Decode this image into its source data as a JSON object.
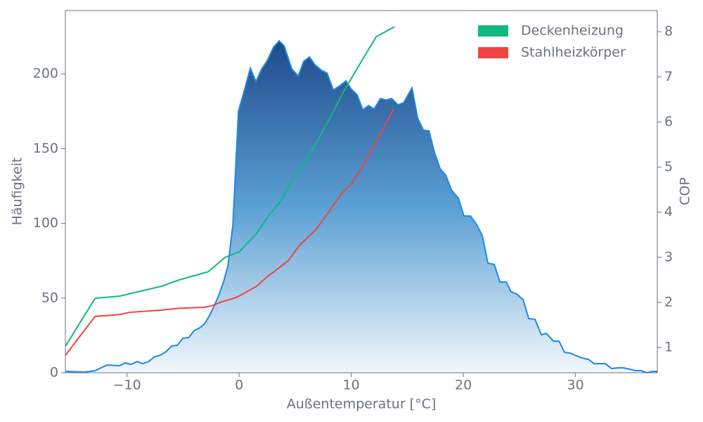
{
  "chart_data": {
    "type": "line",
    "xlabel": "Außentemperatur [°C]",
    "ylabel": "Häufigkeit",
    "y2label": "COP",
    "xlim": [
      -15.5,
      37.3
    ],
    "ylim": [
      0,
      242.4
    ],
    "y2lim": [
      0.44,
      8.47
    ],
    "xticks": [
      {
        "value": -10,
        "label": "−10"
      },
      0,
      10,
      20,
      30
    ],
    "yticks": [
      0,
      50,
      100,
      150,
      200
    ],
    "y2ticks": [
      1,
      2,
      3,
      4,
      5,
      6,
      7,
      8
    ],
    "legend": "upper right",
    "series": [
      {
        "type": "area",
        "color": "#1e88e5",
        "x": [
          -15.49,
          -13.79,
          -12.85,
          -11.79,
          -10.66,
          -10.15,
          -9.66,
          -9.09,
          -8.59,
          -8.09,
          -7.52,
          -7.02,
          -6.52,
          -6.02,
          -5.52,
          -5.02,
          -4.51,
          -4.01,
          -3.51,
          -3.07,
          -2.7,
          -2.26,
          -1.82,
          -1.38,
          -1.0,
          -0.56,
          -0.06,
          0.44,
          1.0,
          1.5,
          2.01,
          2.51,
          3.07,
          3.57,
          4.01,
          4.7,
          5.27,
          5.77,
          6.27,
          6.77,
          7.34,
          7.84,
          8.4,
          8.97,
          9.53,
          9.97,
          10.53,
          11.03,
          11.54,
          12.04,
          12.6,
          13.1,
          13.61,
          14.17,
          14.67,
          15.42,
          15.92,
          16.43,
          16.93,
          17.43,
          17.93,
          18.43,
          18.93,
          19.56,
          20.06,
          20.63,
          21.13,
          21.69,
          22.19,
          22.76,
          23.26,
          23.82,
          24.26,
          24.76,
          25.33,
          25.83,
          26.39,
          26.96,
          27.4,
          28.03,
          28.53,
          29.03,
          29.53,
          30.09,
          30.6,
          31.16,
          31.66,
          32.16,
          32.66,
          33.23,
          33.79,
          34.29,
          34.8,
          35.36,
          35.86,
          36.36,
          36.87,
          37.3
        ],
        "values": [
          0.9,
          0.5,
          1.4,
          5.2,
          4.7,
          6.6,
          5.6,
          7.5,
          6.1,
          7.5,
          10.8,
          11.8,
          14.1,
          17.9,
          18.4,
          23.1,
          23.5,
          28.2,
          30.1,
          32.9,
          37.6,
          44.2,
          51.8,
          61.2,
          71.5,
          98.8,
          175.1,
          188.2,
          203.8,
          194.8,
          203.3,
          208.9,
          217.9,
          222.1,
          218.8,
          203.3,
          198.6,
          208.5,
          211.3,
          206.1,
          202.4,
          200.5,
          189.2,
          192.0,
          195.3,
          190.1,
          185.9,
          176.0,
          178.8,
          176.5,
          183.5,
          182.6,
          183.5,
          179.3,
          180.7,
          190.6,
          170.4,
          162.4,
          161.9,
          147.3,
          136.5,
          132.2,
          122.4,
          116.7,
          104.9,
          104.9,
          99.8,
          91.8,
          73.4,
          72.5,
          60.7,
          60.7,
          54.1,
          52.7,
          48.9,
          36.2,
          35.8,
          25.4,
          26.4,
          21.2,
          21.2,
          13.6,
          13.2,
          11.3,
          9.9,
          8.9,
          6.1,
          6.1,
          6.1,
          2.8,
          3.3,
          3.3,
          2.4,
          1.4,
          1.4,
          0,
          0.9,
          0.9
        ]
      },
      {
        "type": "line",
        "name": "Deckenheizung",
        "color": "#10b981",
        "axis": "y2",
        "x": [
          -15.49,
          -12.85,
          -10.66,
          -6.9,
          -5.33,
          -2.76,
          -1.25,
          0,
          1.57,
          2.7,
          3.7,
          5.33,
          5.77,
          6.83,
          8.15,
          9.4,
          11.16,
          12.23,
          13.86
        ],
        "values": [
          1.03,
          2.09,
          2.14,
          2.36,
          2.5,
          2.68,
          3.0,
          3.12,
          3.53,
          3.95,
          4.24,
          4.96,
          5.07,
          5.51,
          6.11,
          6.71,
          7.45,
          7.89,
          8.11
        ]
      },
      {
        "type": "line",
        "name": "Stahlheizkörper",
        "color": "#ef4444",
        "axis": "y2",
        "x": [
          -15.49,
          -12.85,
          -10.66,
          -9.72,
          -6.9,
          -5.33,
          -3.13,
          -2.51,
          -1.57,
          -0.5,
          0,
          1.57,
          2.51,
          3.64,
          4.39,
          5.33,
          6.9,
          8.03,
          9.09,
          10.03,
          11.29,
          12.54,
          13.79
        ],
        "values": [
          0.83,
          1.69,
          1.73,
          1.78,
          1.83,
          1.87,
          1.89,
          1.92,
          2.01,
          2.09,
          2.14,
          2.36,
          2.57,
          2.78,
          2.93,
          3.25,
          3.63,
          4.02,
          4.4,
          4.63,
          5.13,
          5.71,
          6.29
        ]
      }
    ]
  }
}
